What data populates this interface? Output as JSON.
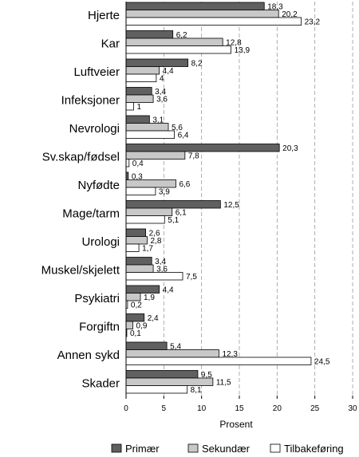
{
  "chart_data": {
    "type": "bar",
    "orientation": "horizontal",
    "categories": [
      "Hjerte",
      "Kar",
      "Luftveier",
      "Infeksjoner",
      "Nevrologi",
      "Sv.skap/fødsel",
      "Nyfødte",
      "Mage/tarm",
      "Urologi",
      "Muskel/skjelett",
      "Psykiatri",
      "Forgiftn",
      "Annen sykd",
      "Skader"
    ],
    "series": [
      {
        "name": "Primær",
        "color": "#606060",
        "values": [
          18.3,
          6.2,
          8.2,
          3.4,
          3.1,
          20.3,
          0.3,
          12.5,
          2.6,
          3.4,
          4.4,
          2.4,
          5.4,
          9.5
        ],
        "labels": [
          "18,3",
          "6,2",
          "8,2",
          "3,4",
          "3,1",
          "20,3",
          "0,3",
          "12,5",
          "2,6",
          "3,4",
          "4,4",
          "2,4",
          "5,4",
          "9,5"
        ]
      },
      {
        "name": "Sekundær",
        "color": "#c8c8c8",
        "values": [
          20.2,
          12.8,
          4.4,
          3.6,
          5.6,
          7.8,
          6.6,
          6.1,
          2.8,
          3.6,
          1.9,
          0.9,
          12.3,
          11.5
        ],
        "labels": [
          "20,2",
          "12,8",
          "4,4",
          "3,6",
          "5,6",
          "7,8",
          "6,6",
          "6,1",
          "2,8",
          "3,6",
          "1,9",
          "0,9",
          "12,3",
          "11,5"
        ]
      },
      {
        "name": "Tilbakeføring",
        "color": "#ffffff",
        "values": [
          23.2,
          13.9,
          4,
          1,
          6.4,
          0.4,
          3.9,
          5.1,
          1.7,
          7.5,
          0.2,
          0.1,
          24.5,
          8.1
        ],
        "labels": [
          "23,2",
          "13,9",
          "4",
          "1",
          "6,4",
          "0,4",
          "3,9",
          "5,1",
          "1,7",
          "7,5",
          "0,2",
          "0,1",
          "24,5",
          "8,1"
        ]
      }
    ],
    "xlabel": "Prosent",
    "xlim": [
      0,
      30
    ],
    "xticks": [
      "0",
      "5",
      "10",
      "15",
      "20",
      "25",
      "30"
    ],
    "grid": "vertical-dashed",
    "legend_position": "bottom"
  }
}
